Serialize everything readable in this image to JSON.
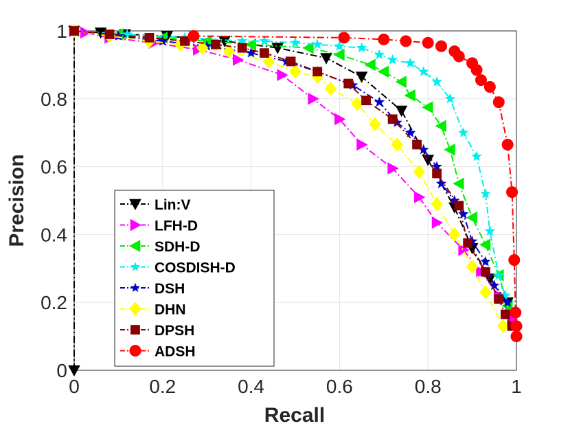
{
  "chart_data": {
    "type": "line",
    "title": "",
    "xlabel": "Recall",
    "ylabel": "Precision",
    "xlim": [
      0,
      1
    ],
    "ylim": [
      0,
      1
    ],
    "xticks": [
      "0",
      "0.2",
      "0.4",
      "0.6",
      "0.8",
      "1"
    ],
    "yticks": [
      "0",
      "0.2",
      "0.4",
      "0.6",
      "0.8",
      "1"
    ],
    "grid": true,
    "legend_position": "lower-left",
    "series": [
      {
        "name": "Lin:V",
        "color": "#000000",
        "marker": "triangle-down",
        "line_style": "dashdot",
        "points": [
          [
            0,
            0
          ],
          [
            0,
            1.0
          ],
          [
            0.06,
            0.995
          ],
          [
            0.115,
            0.99
          ],
          [
            0.21,
            0.985
          ],
          [
            0.34,
            0.97
          ],
          [
            0.46,
            0.95
          ],
          [
            0.57,
            0.92
          ],
          [
            0.65,
            0.865
          ],
          [
            0.74,
            0.765
          ],
          [
            0.8,
            0.62
          ],
          [
            0.86,
            0.48
          ],
          [
            0.9,
            0.36
          ],
          [
            0.94,
            0.27
          ],
          [
            0.98,
            0.2
          ]
        ]
      },
      {
        "name": "LFH-D",
        "color": "#ff00ff",
        "marker": "triangle-right",
        "line_style": "dashdot",
        "points": [
          [
            0,
            1.0
          ],
          [
            0.025,
            0.995
          ],
          [
            0.08,
            0.98
          ],
          [
            0.18,
            0.965
          ],
          [
            0.28,
            0.945
          ],
          [
            0.37,
            0.915
          ],
          [
            0.47,
            0.87
          ],
          [
            0.54,
            0.8
          ],
          [
            0.6,
            0.74
          ],
          [
            0.65,
            0.665
          ],
          [
            0.72,
            0.595
          ],
          [
            0.78,
            0.51
          ],
          [
            0.82,
            0.435
          ],
          [
            0.88,
            0.355
          ],
          [
            0.92,
            0.29
          ],
          [
            0.96,
            0.22
          ],
          [
            0.99,
            0.15
          ]
        ]
      },
      {
        "name": "SDH-D",
        "color": "#00ee00",
        "marker": "triangle-left",
        "line_style": "dashdot",
        "points": [
          [
            0,
            1.0
          ],
          [
            0.1,
            0.99
          ],
          [
            0.2,
            0.98
          ],
          [
            0.3,
            0.97
          ],
          [
            0.4,
            0.96
          ],
          [
            0.53,
            0.95
          ],
          [
            0.6,
            0.93
          ],
          [
            0.67,
            0.9
          ],
          [
            0.7,
            0.88
          ],
          [
            0.74,
            0.85
          ],
          [
            0.76,
            0.81
          ],
          [
            0.8,
            0.775
          ],
          [
            0.83,
            0.72
          ],
          [
            0.85,
            0.65
          ],
          [
            0.87,
            0.55
          ],
          [
            0.9,
            0.45
          ],
          [
            0.93,
            0.37
          ],
          [
            0.96,
            0.28
          ],
          [
            0.98,
            0.19
          ]
        ]
      },
      {
        "name": "COSDISH-D",
        "color": "#00eeee",
        "marker": "star",
        "line_style": "dashdot",
        "points": [
          [
            0,
            1.0
          ],
          [
            0.12,
            0.99
          ],
          [
            0.25,
            0.98
          ],
          [
            0.38,
            0.97
          ],
          [
            0.43,
            0.97
          ],
          [
            0.5,
            0.965
          ],
          [
            0.55,
            0.96
          ],
          [
            0.6,
            0.955
          ],
          [
            0.65,
            0.95
          ],
          [
            0.69,
            0.93
          ],
          [
            0.72,
            0.915
          ],
          [
            0.76,
            0.905
          ],
          [
            0.79,
            0.88
          ],
          [
            0.82,
            0.85
          ],
          [
            0.85,
            0.8
          ],
          [
            0.88,
            0.7
          ],
          [
            0.91,
            0.63
          ],
          [
            0.93,
            0.52
          ],
          [
            0.94,
            0.41
          ],
          [
            0.96,
            0.28
          ],
          [
            0.975,
            0.22
          ]
        ]
      },
      {
        "name": "DSH",
        "color": "#0000cc",
        "marker": "star",
        "line_style": "dashdot",
        "points": [
          [
            0,
            1.0
          ],
          [
            0.1,
            0.985
          ],
          [
            0.2,
            0.97
          ],
          [
            0.3,
            0.955
          ],
          [
            0.4,
            0.935
          ],
          [
            0.48,
            0.91
          ],
          [
            0.55,
            0.88
          ],
          [
            0.63,
            0.84
          ],
          [
            0.69,
            0.79
          ],
          [
            0.73,
            0.73
          ],
          [
            0.76,
            0.7
          ],
          [
            0.79,
            0.65
          ],
          [
            0.82,
            0.6
          ],
          [
            0.83,
            0.55
          ],
          [
            0.86,
            0.5
          ],
          [
            0.88,
            0.46
          ],
          [
            0.9,
            0.38
          ],
          [
            0.93,
            0.32
          ],
          [
            0.95,
            0.25
          ],
          [
            0.98,
            0.2
          ]
        ]
      },
      {
        "name": "DHN",
        "color": "#ffff00",
        "marker": "diamond",
        "line_style": "dashdot",
        "points": [
          [
            0,
            1.0
          ],
          [
            0.08,
            0.985
          ],
          [
            0.17,
            0.97
          ],
          [
            0.24,
            0.96
          ],
          [
            0.29,
            0.95
          ],
          [
            0.35,
            0.94
          ],
          [
            0.44,
            0.91
          ],
          [
            0.5,
            0.88
          ],
          [
            0.55,
            0.865
          ],
          [
            0.58,
            0.83
          ],
          [
            0.64,
            0.785
          ],
          [
            0.68,
            0.725
          ],
          [
            0.73,
            0.665
          ],
          [
            0.78,
            0.585
          ],
          [
            0.82,
            0.49
          ],
          [
            0.86,
            0.4
          ],
          [
            0.9,
            0.305
          ],
          [
            0.93,
            0.23
          ],
          [
            0.97,
            0.13
          ]
        ]
      },
      {
        "name": "DPSH",
        "color": "#8b0000",
        "marker": "square",
        "line_style": "dashdot",
        "points": [
          [
            0,
            1.0
          ],
          [
            0.08,
            0.99
          ],
          [
            0.17,
            0.98
          ],
          [
            0.25,
            0.97
          ],
          [
            0.32,
            0.96
          ],
          [
            0.38,
            0.95
          ],
          [
            0.43,
            0.935
          ],
          [
            0.49,
            0.91
          ],
          [
            0.55,
            0.88
          ],
          [
            0.62,
            0.845
          ],
          [
            0.66,
            0.795
          ],
          [
            0.72,
            0.74
          ],
          [
            0.775,
            0.665
          ],
          [
            0.82,
            0.58
          ],
          [
            0.87,
            0.485
          ],
          [
            0.89,
            0.375
          ],
          [
            0.93,
            0.29
          ],
          [
            0.96,
            0.21
          ],
          [
            0.975,
            0.165
          ],
          [
            0.99,
            0.13
          ]
        ]
      },
      {
        "name": "ADSH",
        "color": "#ff0000",
        "marker": "circle",
        "line_style": "dashdot",
        "points": [
          [
            0.27,
            0.985
          ],
          [
            0.61,
            0.98
          ],
          [
            0.7,
            0.975
          ],
          [
            0.75,
            0.97
          ],
          [
            0.8,
            0.965
          ],
          [
            0.83,
            0.955
          ],
          [
            0.86,
            0.94
          ],
          [
            0.87,
            0.925
          ],
          [
            0.9,
            0.905
          ],
          [
            0.91,
            0.885
          ],
          [
            0.92,
            0.855
          ],
          [
            0.94,
            0.835
          ],
          [
            0.96,
            0.79
          ],
          [
            0.98,
            0.665
          ],
          [
            0.99,
            0.525
          ],
          [
            0.995,
            0.325
          ],
          [
            0.998,
            0.17
          ],
          [
            1.0,
            0.13
          ],
          [
            1.0,
            0.1
          ]
        ]
      }
    ]
  }
}
